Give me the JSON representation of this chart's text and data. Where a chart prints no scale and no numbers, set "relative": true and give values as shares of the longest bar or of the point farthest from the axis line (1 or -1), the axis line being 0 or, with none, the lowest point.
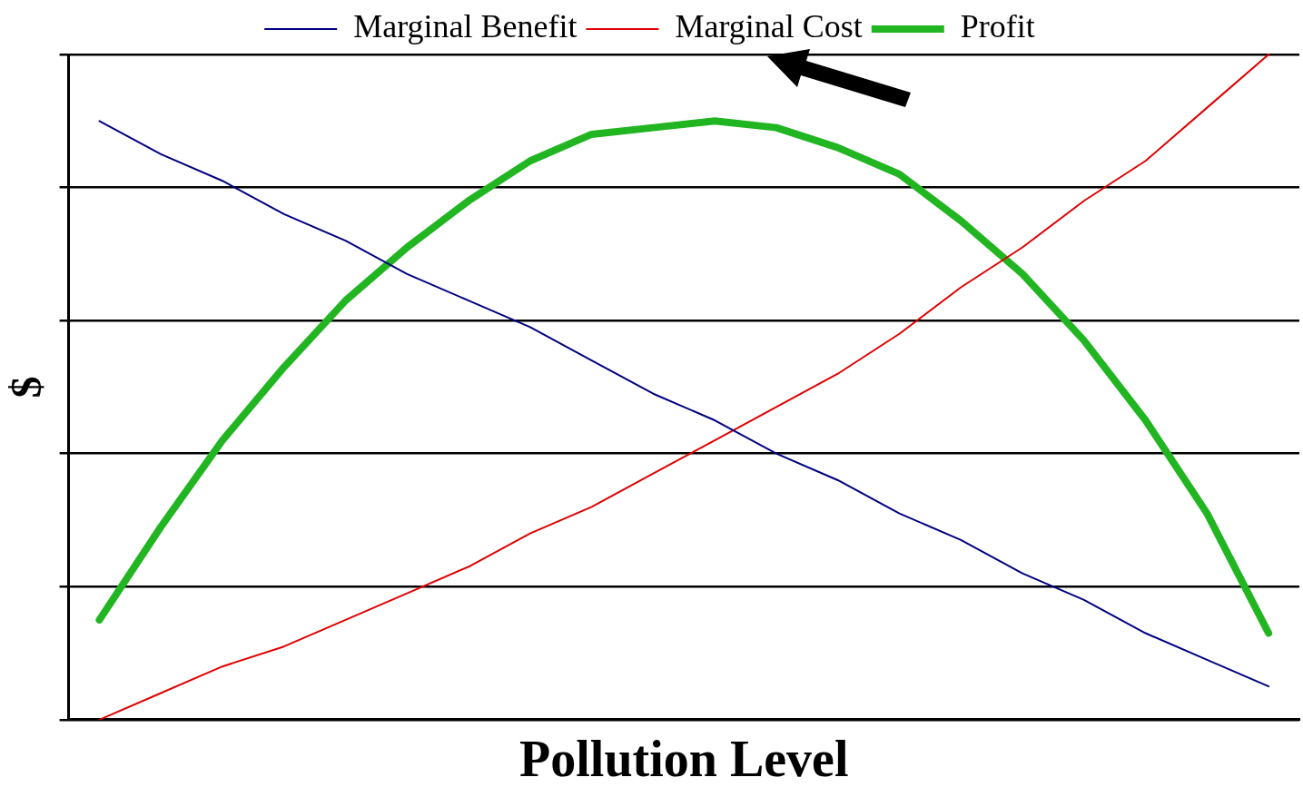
{
  "chart_data": {
    "type": "line",
    "xlabel": "Pollution Level",
    "ylabel": "$",
    "relative": true,
    "tick_labels": false,
    "grid": "y",
    "legend": "top",
    "marker": "none",
    "line_style": "solid",
    "categories": [
      null,
      null,
      null,
      null,
      null,
      null,
      null,
      null,
      null,
      null,
      null,
      null,
      null,
      null,
      null,
      null,
      null,
      null,
      null,
      null
    ],
    "series": [
      {
        "name": "Marginal Benefit",
        "color": "#000080",
        "values": [
          0.9,
          0.85,
          0.81,
          0.76,
          0.72,
          0.67,
          0.63,
          0.59,
          0.54,
          0.49,
          0.45,
          0.4,
          0.36,
          0.31,
          0.27,
          0.22,
          0.18,
          0.13,
          0.09,
          0.05
        ]
      },
      {
        "name": "Marginal Cost",
        "color": "#e00000",
        "values": [
          0,
          0.04,
          0.08,
          0.11,
          0.15,
          0.19,
          0.23,
          0.28,
          0.32,
          0.37,
          0.42,
          0.47,
          0.52,
          0.58,
          0.65,
          0.71,
          0.78,
          0.84,
          0.92,
          1
        ]
      },
      {
        "name": "Profit",
        "color": "#22b522",
        "values": [
          0.15,
          0.29,
          0.42,
          0.53,
          0.63,
          0.71,
          0.78,
          0.84,
          0.88,
          0.89,
          0.9,
          0.89,
          0.86,
          0.82,
          0.75,
          0.67,
          0.57,
          0.45,
          0.31,
          0.13
        ]
      }
    ]
  }
}
